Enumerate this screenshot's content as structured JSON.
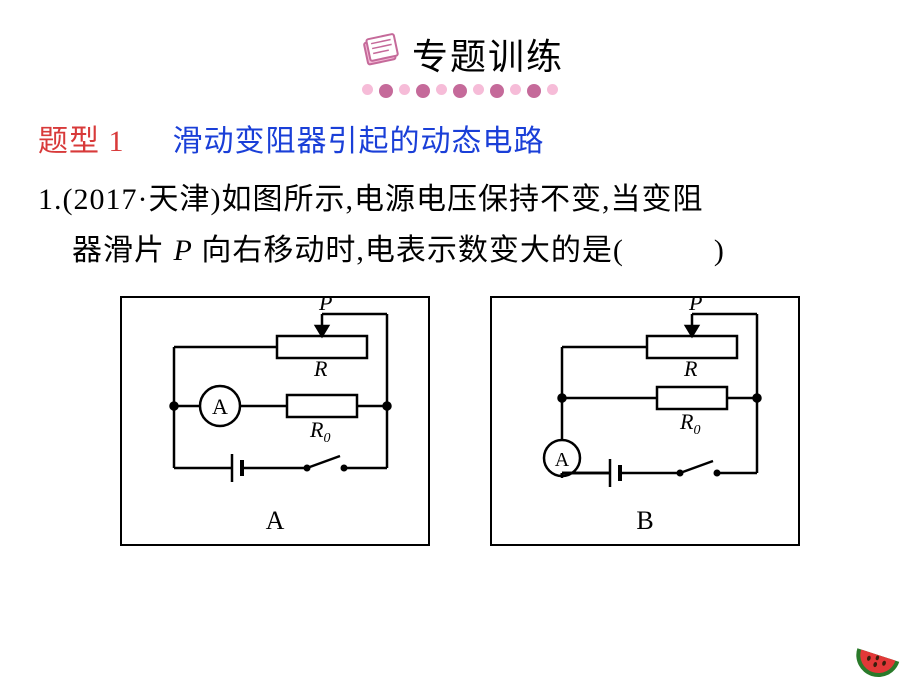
{
  "header": {
    "title": "专题训练",
    "icon_box_stroke": "#c56a9a",
    "icon_box_fill": "#f6bcd8",
    "dots": [
      {
        "fill": "#f6bcd8",
        "size": 11
      },
      {
        "fill": "#c56a9a",
        "size": 14
      },
      {
        "fill": "#f6bcd8",
        "size": 11
      },
      {
        "fill": "#c56a9a",
        "size": 14
      },
      {
        "fill": "#f6bcd8",
        "size": 11
      },
      {
        "fill": "#c56a9a",
        "size": 14
      },
      {
        "fill": "#f6bcd8",
        "size": 11
      },
      {
        "fill": "#c56a9a",
        "size": 14
      },
      {
        "fill": "#f6bcd8",
        "size": 11
      },
      {
        "fill": "#c56a9a",
        "size": 14
      },
      {
        "fill": "#f6bcd8",
        "size": 11
      }
    ]
  },
  "section": {
    "prefix": "题型 1",
    "title": "滑动变阻器引起的动态电路",
    "prefix_color": "#d83a3a",
    "title_color": "#1a3fd8"
  },
  "question": {
    "number": "1.",
    "source_prefix": "(2017·天津)",
    "line1_rest": "如图所示,电源电压保持不变,当变阻",
    "line2_a": "器滑片 ",
    "line2_var": "P",
    "line2_b": " 向右移动时,电表示数变大的是(",
    "line2_c": ")",
    "text_color": "#000000"
  },
  "diagrams": {
    "stroke": "#000000",
    "stroke_width": 2,
    "font_family": "Times New Roman",
    "labels": {
      "A": "A",
      "B": "B"
    },
    "component_labels": {
      "P": "P",
      "R": "R",
      "R0": "R",
      "R0_sub": "0",
      "A_meter": "A"
    }
  },
  "decor": {
    "watermelon_green": "#2a7a2a",
    "watermelon_red": "#e23838",
    "watermelon_seed": "#3a1f0d"
  }
}
